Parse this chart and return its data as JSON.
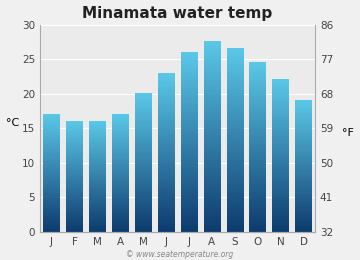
{
  "title": "Minamata water temp",
  "months": [
    "J",
    "F",
    "M",
    "A",
    "M",
    "J",
    "J",
    "A",
    "S",
    "O",
    "N",
    "D"
  ],
  "values_c": [
    17.0,
    16.0,
    16.0,
    17.0,
    20.0,
    23.0,
    26.0,
    27.5,
    26.5,
    24.5,
    22.0,
    19.0
  ],
  "ylabel_left": "°C",
  "ylabel_right": "°F",
  "ylim_c": [
    0,
    30
  ],
  "yticks_c": [
    0,
    5,
    10,
    15,
    20,
    25,
    30
  ],
  "yticks_f": [
    32,
    41,
    50,
    59,
    68,
    77,
    86
  ],
  "bar_color_top": "#5bc8e8",
  "bar_color_bottom": "#0d3b6e",
  "bg_color": "#f0f0f0",
  "plot_bg_color": "#ebebeb",
  "watermark": "© www.seatemperature.org",
  "title_fontsize": 11,
  "tick_fontsize": 7.5,
  "label_fontsize": 8
}
